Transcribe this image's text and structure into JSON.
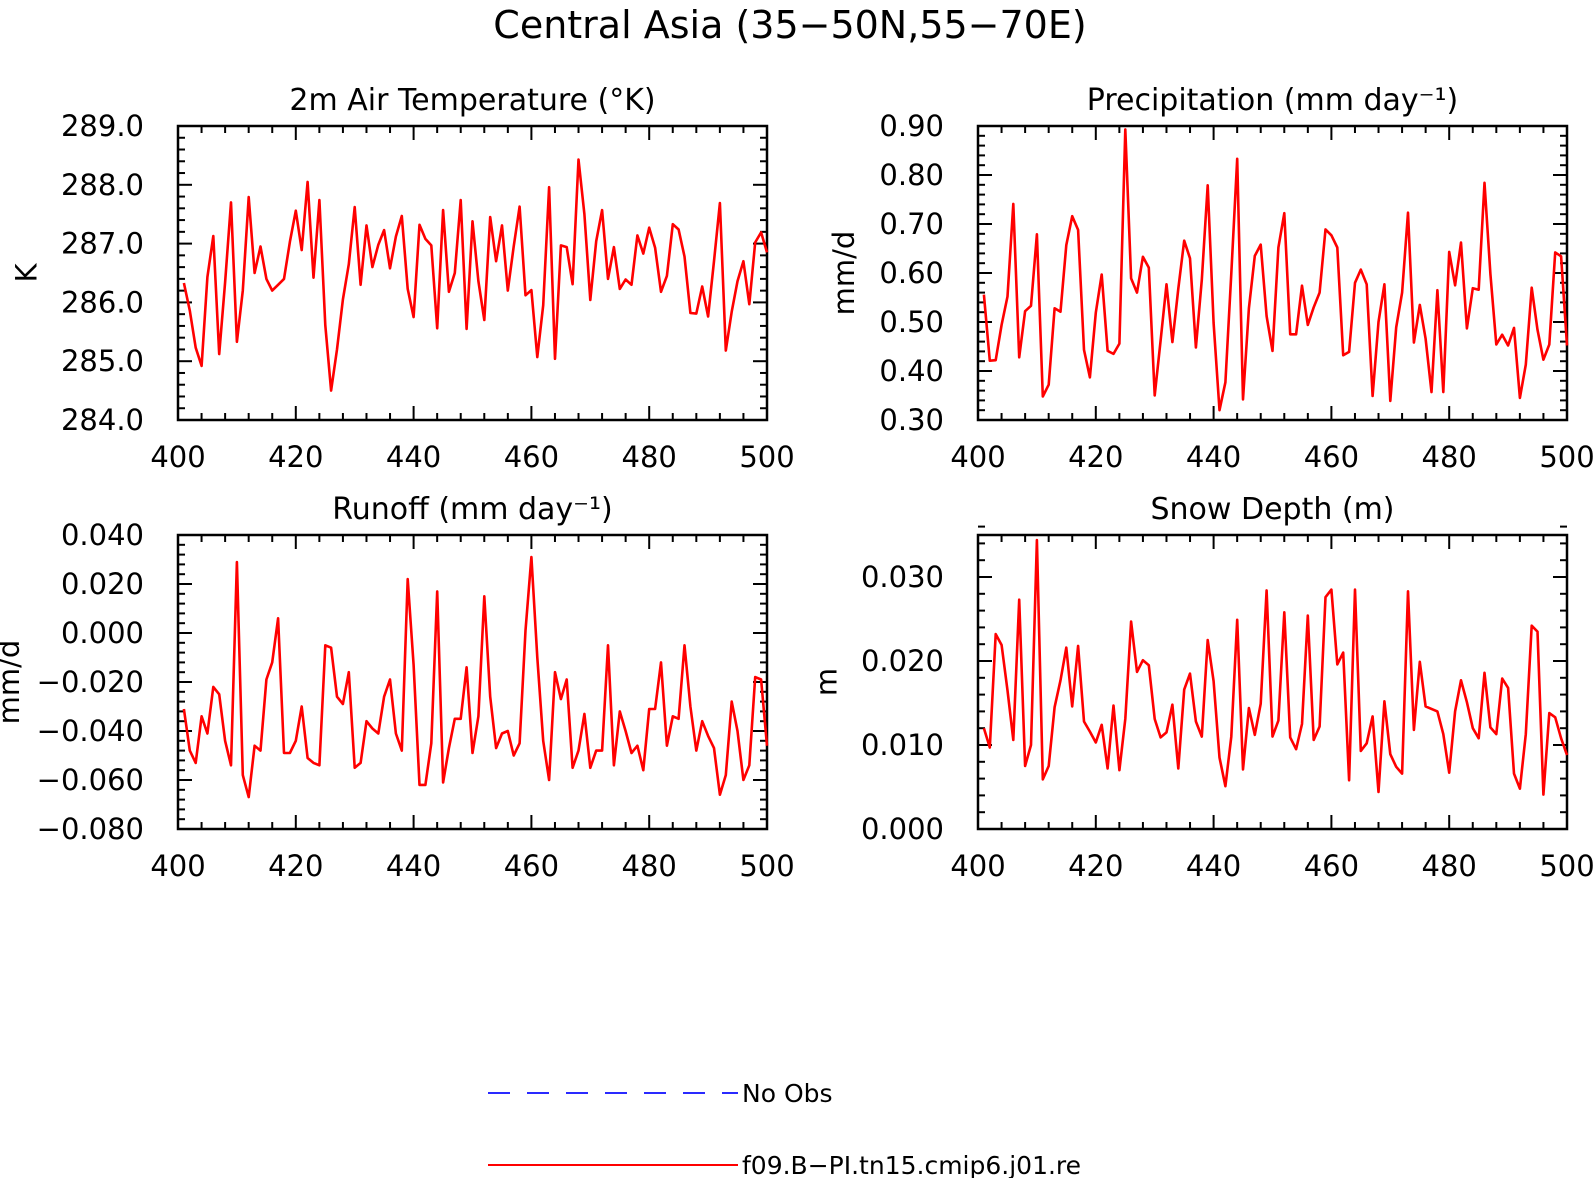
{
  "page": {
    "title": "Central Asia (35−50N,55−70E)"
  },
  "legend": {
    "items": [
      {
        "label": "No Obs",
        "color": "#2a2aff",
        "style": "dashed"
      },
      {
        "label": "f09.B−PI.tn15.cmip6.j01.re",
        "color": "#ff0000",
        "style": "solid"
      }
    ]
  },
  "colors": {
    "series": "#ff0000",
    "no_obs": "#2a2aff",
    "axes": "#000000"
  },
  "chart_data": [
    {
      "type": "line",
      "title": "2m Air Temperature (°K)",
      "xlabel": "",
      "ylabel": "K",
      "xlim": [
        400,
        500
      ],
      "ylim": [
        284.0,
        289.0
      ],
      "xticks": [
        "400",
        "420",
        "440",
        "460",
        "480",
        "500"
      ],
      "yticks": [
        "284.0",
        "285.0",
        "286.0",
        "287.0",
        "288.0",
        "289.0"
      ],
      "grid": false,
      "series": [
        {
          "name": "f09.B−PI.tn15.cmip6.j01.re",
          "x_start": 401,
          "x_step": 1,
          "values": [
            286.33,
            285.86,
            285.23,
            284.92,
            286.43,
            287.13,
            285.12,
            286.34,
            287.7,
            285.33,
            286.2,
            287.79,
            286.5,
            286.95,
            286.4,
            286.2,
            286.3,
            286.4,
            287.03,
            287.56,
            286.89,
            288.05,
            286.42,
            287.74,
            285.61,
            284.5,
            285.2,
            286.05,
            286.65,
            287.62,
            286.3,
            287.31,
            286.6,
            286.98,
            287.23,
            286.58,
            287.12,
            287.47,
            286.23,
            285.75,
            287.32,
            287.08,
            286.97,
            285.56,
            287.57,
            286.18,
            286.5,
            287.74,
            285.55,
            287.38,
            286.36,
            285.7,
            287.45,
            286.7,
            287.31,
            286.2,
            286.95,
            287.63,
            286.12,
            286.21,
            285.07,
            285.95,
            287.96,
            285.04,
            286.97,
            286.94,
            286.31,
            288.43,
            287.5,
            286.04,
            287.04,
            287.57,
            286.4,
            286.94,
            286.23,
            286.39,
            286.3,
            287.14,
            286.83,
            287.27,
            286.93,
            286.18,
            286.45,
            287.33,
            287.24,
            286.78,
            285.82,
            285.81,
            286.27,
            285.76,
            286.7,
            287.69,
            285.18,
            285.84,
            286.36,
            286.7,
            285.97,
            287.02,
            287.19,
            286.85
          ]
        }
      ]
    },
    {
      "type": "line",
      "title": "Precipitation (mm day⁻¹)",
      "xlabel": "",
      "ylabel": "mm/d",
      "xlim": [
        400,
        500
      ],
      "ylim": [
        0.3,
        0.9
      ],
      "xticks": [
        "400",
        "420",
        "440",
        "460",
        "480",
        "500"
      ],
      "yticks": [
        "0.30",
        "0.40",
        "0.50",
        "0.60",
        "0.70",
        "0.80",
        "0.90"
      ],
      "grid": false,
      "series": [
        {
          "name": "f09.B−PI.tn15.cmip6.j01.re",
          "x_start": 401,
          "x_step": 1,
          "values": [
            0.556,
            0.421,
            0.422,
            0.494,
            0.552,
            0.741,
            0.428,
            0.522,
            0.533,
            0.679,
            0.348,
            0.372,
            0.528,
            0.521,
            0.657,
            0.716,
            0.688,
            0.443,
            0.387,
            0.519,
            0.597,
            0.441,
            0.435,
            0.456,
            0.893,
            0.589,
            0.56,
            0.633,
            0.611,
            0.35,
            0.462,
            0.577,
            0.459,
            0.568,
            0.666,
            0.63,
            0.448,
            0.586,
            0.779,
            0.498,
            0.32,
            0.377,
            0.599,
            0.833,
            0.342,
            0.528,
            0.635,
            0.658,
            0.512,
            0.441,
            0.652,
            0.722,
            0.475,
            0.475,
            0.574,
            0.494,
            0.53,
            0.56,
            0.689,
            0.677,
            0.652,
            0.432,
            0.439,
            0.58,
            0.607,
            0.577,
            0.349,
            0.5,
            0.577,
            0.339,
            0.489,
            0.56,
            0.723,
            0.458,
            0.535,
            0.466,
            0.357,
            0.565,
            0.357,
            0.643,
            0.575,
            0.662,
            0.487,
            0.569,
            0.566,
            0.784,
            0.598,
            0.454,
            0.474,
            0.452,
            0.488,
            0.345,
            0.413,
            0.57,
            0.484,
            0.423,
            0.454,
            0.642,
            0.634,
            0.452
          ]
        }
      ]
    },
    {
      "type": "line",
      "title": "Runoff (mm day⁻¹)",
      "xlabel": "",
      "ylabel": "mm/d",
      "xlim": [
        400,
        500
      ],
      "ylim": [
        -0.08,
        0.04
      ],
      "xticks": [
        "400",
        "420",
        "440",
        "460",
        "480",
        "500"
      ],
      "yticks": [
        "−0.080",
        "−0.060",
        "−0.040",
        "−0.020",
        "0.000",
        "0.020",
        "0.040"
      ],
      "grid": false,
      "series": [
        {
          "name": "f09.B−PI.tn15.cmip6.j01.re",
          "x_start": 401,
          "x_step": 1,
          "values": [
            -0.031,
            -0.048,
            -0.053,
            -0.034,
            -0.041,
            -0.022,
            -0.025,
            -0.044,
            -0.054,
            0.029,
            -0.058,
            -0.067,
            -0.046,
            -0.048,
            -0.019,
            -0.012,
            0.006,
            -0.049,
            -0.049,
            -0.044,
            -0.03,
            -0.051,
            -0.053,
            -0.054,
            -0.005,
            -0.006,
            -0.026,
            -0.029,
            -0.016,
            -0.055,
            -0.053,
            -0.036,
            -0.039,
            -0.041,
            -0.026,
            -0.019,
            -0.041,
            -0.048,
            0.022,
            -0.013,
            -0.062,
            -0.062,
            -0.045,
            0.017,
            -0.061,
            -0.047,
            -0.035,
            -0.035,
            -0.014,
            -0.049,
            -0.034,
            0.015,
            -0.026,
            -0.047,
            -0.041,
            -0.04,
            -0.05,
            -0.045,
            0.001,
            0.031,
            -0.01,
            -0.044,
            -0.06,
            -0.016,
            -0.027,
            -0.019,
            -0.055,
            -0.048,
            -0.033,
            -0.055,
            -0.048,
            -0.048,
            -0.005,
            -0.054,
            -0.032,
            -0.04,
            -0.049,
            -0.046,
            -0.056,
            -0.031,
            -0.031,
            -0.012,
            -0.046,
            -0.034,
            -0.035,
            -0.005,
            -0.03,
            -0.048,
            -0.036,
            -0.042,
            -0.047,
            -0.066,
            -0.058,
            -0.028,
            -0.04,
            -0.06,
            -0.054,
            -0.018,
            -0.019,
            -0.046
          ]
        }
      ]
    },
    {
      "type": "line",
      "title": "Snow Depth (m)",
      "xlabel": "",
      "ylabel": "m",
      "xlim": [
        400,
        500
      ],
      "ylim": [
        0.0,
        0.035
      ],
      "xticks": [
        "400",
        "420",
        "440",
        "460",
        "480",
        "500"
      ],
      "yticks": [
        "0.000",
        "0.010",
        "0.020",
        "0.030"
      ],
      "ytick_values": [
        0.0,
        0.01,
        0.02,
        0.03
      ],
      "grid": false,
      "series": [
        {
          "name": "f09.B−PI.tn15.cmip6.j01.re",
          "x_start": 401,
          "x_step": 1,
          "values": [
            0.012,
            0.0097,
            0.0232,
            0.0219,
            0.0165,
            0.0106,
            0.0273,
            0.0075,
            0.01,
            0.0344,
            0.0059,
            0.0075,
            0.0145,
            0.0177,
            0.0216,
            0.0146,
            0.0218,
            0.0128,
            0.0116,
            0.0103,
            0.0124,
            0.0072,
            0.0147,
            0.007,
            0.0131,
            0.0247,
            0.0187,
            0.0201,
            0.0195,
            0.0131,
            0.0109,
            0.0115,
            0.0148,
            0.0072,
            0.0166,
            0.0185,
            0.0128,
            0.011,
            0.0225,
            0.0176,
            0.0085,
            0.0051,
            0.011,
            0.0249,
            0.0071,
            0.0144,
            0.0112,
            0.0149,
            0.0284,
            0.011,
            0.0129,
            0.0258,
            0.0109,
            0.0095,
            0.0125,
            0.0254,
            0.0106,
            0.0122,
            0.0276,
            0.0285,
            0.0196,
            0.021,
            0.0058,
            0.0285,
            0.0093,
            0.0102,
            0.0134,
            0.0044,
            0.0152,
            0.0089,
            0.0074,
            0.0066,
            0.0283,
            0.0118,
            0.0199,
            0.0146,
            0.0143,
            0.014,
            0.0113,
            0.0067,
            0.014,
            0.0177,
            0.0151,
            0.012,
            0.0108,
            0.0186,
            0.0121,
            0.0113,
            0.0179,
            0.0168,
            0.0066,
            0.0048,
            0.0113,
            0.0242,
            0.0235,
            0.0041,
            0.0138,
            0.0133,
            0.0108,
            0.0088
          ]
        }
      ]
    }
  ]
}
